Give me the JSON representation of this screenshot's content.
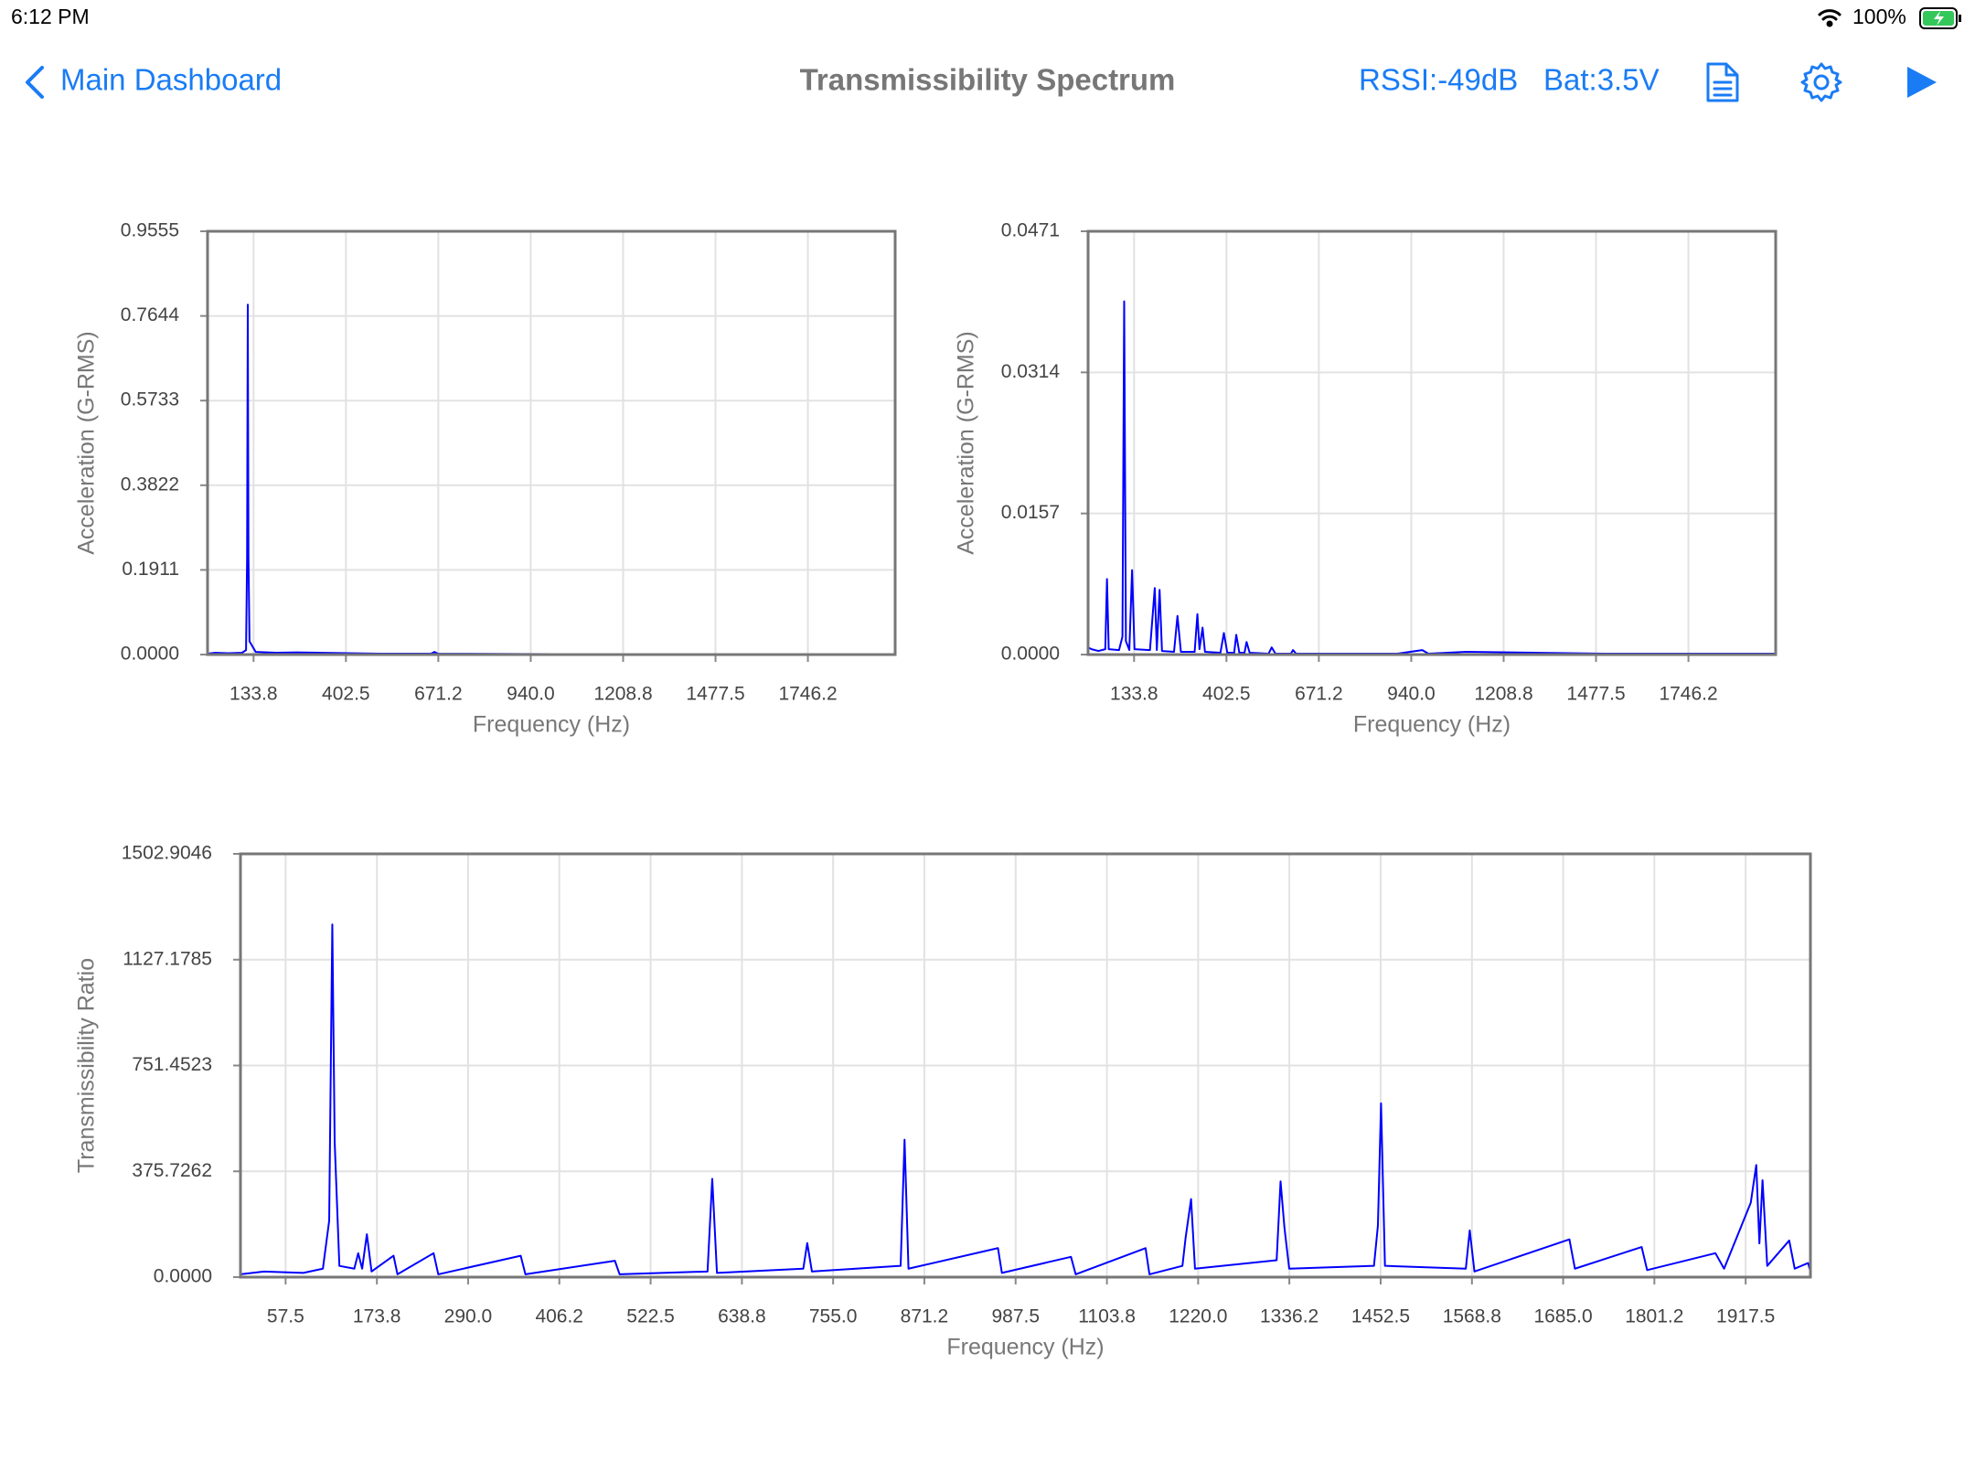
{
  "status_bar": {
    "time": "6:12 PM",
    "battery": "100%"
  },
  "nav_bar": {
    "back": "Main Dashboard",
    "title": "Transmissibility Spectrum",
    "rssi": "RSSI:-49dB",
    "battery": "Bat:3.5V"
  },
  "chart_data": [
    {
      "type": "line",
      "xlabel": "Frequency (Hz)",
      "ylabel": "Acceleration (G-RMS)",
      "color": "#0000ff",
      "grid": true,
      "xlim": [
        0,
        2000
      ],
      "ylim": [
        0,
        0.9555
      ],
      "xticks": [
        133.8,
        402.5,
        671.2,
        {
          "value": 940,
          "label": "940.0"
        },
        1208.8,
        1477.5,
        1746.2
      ],
      "yticks": [
        {
          "value": 0,
          "label": "0.0000"
        },
        0.1911,
        0.3822,
        0.5733,
        0.7644,
        0.9555
      ],
      "x": [
        0,
        20,
        60,
        100,
        112,
        115,
        117,
        119,
        122,
        140,
        200,
        260,
        500,
        650,
        660,
        670,
        1000,
        1500,
        2000
      ],
      "values": [
        0.002,
        0.004,
        0.003,
        0.004,
        0.01,
        0.22,
        0.79,
        0.22,
        0.03,
        0.006,
        0.004,
        0.005,
        0.002,
        0.002,
        0.006,
        0.002,
        0.001,
        0.001,
        0.001
      ]
    },
    {
      "type": "line",
      "xlabel": "Frequency (Hz)",
      "ylabel": "Acceleration (G-RMS)",
      "color": "#0000ff",
      "grid": true,
      "xlim": [
        0,
        2000
      ],
      "ylim": [
        0,
        0.0471
      ],
      "xticks": [
        133.8,
        402.5,
        671.2,
        {
          "value": 940,
          "label": "940.0"
        },
        1208.8,
        1477.5,
        1746.2
      ],
      "yticks": [
        {
          "value": 0,
          "label": "0.0000"
        },
        0.0157,
        0.0314,
        0.0471
      ],
      "x": [
        0,
        10,
        30,
        50,
        55,
        60,
        90,
        100,
        105,
        110,
        120,
        128,
        135,
        180,
        194,
        200,
        208,
        215,
        250,
        260,
        270,
        310,
        318,
        324,
        333,
        340,
        385,
        395,
        405,
        425,
        431,
        440,
        455,
        461,
        470,
        525,
        534,
        545,
        590,
        596,
        605,
        700,
        900,
        972,
        990,
        1100,
        1500,
        2000
      ],
      "values": [
        0.0008,
        0.0006,
        0.0004,
        0.0006,
        0.0084,
        0.0006,
        0.0005,
        0.002,
        0.0393,
        0.0015,
        0.0005,
        0.0094,
        0.0006,
        0.0005,
        0.0074,
        0.0005,
        0.0072,
        0.0004,
        0.0003,
        0.0043,
        0.0003,
        0.0003,
        0.0045,
        0.0006,
        0.003,
        0.0003,
        0.0002,
        0.0024,
        0.0002,
        0.0002,
        0.0022,
        0.0002,
        0.0002,
        0.0014,
        0.0002,
        0.0001,
        0.0008,
        0.0001,
        0.0001,
        0.0005,
        0.0001,
        0.0001,
        0.0001,
        0.0005,
        0.0001,
        0.0003,
        0.0001,
        0.0001
      ]
    },
    {
      "type": "line",
      "xlabel": "Frequency (Hz)",
      "ylabel": "Transmissibility Ratio",
      "color": "#0000ff",
      "grid": true,
      "xlim": [
        0,
        2000
      ],
      "ylim": [
        0,
        1502.9046
      ],
      "xticks": [
        57.5,
        173.8,
        {
          "value": 290,
          "label": "290.0"
        },
        406.2,
        522.5,
        638.8,
        {
          "value": 755,
          "label": "755.0"
        },
        871.2,
        987.5,
        1103.8,
        {
          "value": 1220,
          "label": "1220.0"
        },
        1336.2,
        1452.5,
        1568.8,
        {
          "value": 1685,
          "label": "1685.0"
        },
        1801.2,
        1917.5
      ],
      "yticks": [
        {
          "value": 0,
          "label": "0.0000"
        },
        375.7262,
        751.4523,
        1127.1785,
        1502.9046
      ],
      "x": [
        0,
        30,
        80,
        105,
        113,
        117,
        120,
        126,
        145,
        150,
        155,
        161,
        167,
        195,
        200,
        246,
        252,
        357,
        363,
        477,
        483,
        595,
        601,
        607,
        717,
        722,
        728,
        841,
        846,
        851,
        965,
        970,
        1058,
        1064,
        1153,
        1158,
        1200,
        1204,
        1211,
        1216,
        1320,
        1325,
        1330,
        1336,
        1444,
        1449,
        1453,
        1458,
        1561,
        1566,
        1572,
        1693,
        1700,
        1785,
        1792,
        1879,
        1890,
        1924,
        1931,
        1935,
        1939,
        1945,
        1973,
        1980,
        1997,
        2000
      ],
      "values": [
        10,
        20,
        15,
        30,
        200,
        1252,
        480,
        40,
        30,
        85,
        30,
        152,
        20,
        76,
        10,
        85,
        10,
        76,
        10,
        58,
        10,
        20,
        349,
        15,
        30,
        121,
        20,
        40,
        488,
        30,
        103,
        15,
        72,
        10,
        103,
        10,
        40,
        139,
        277,
        30,
        60,
        340,
        174,
        30,
        40,
        183,
        617,
        40,
        30,
        166,
        20,
        134,
        30,
        107,
        25,
        85,
        30,
        264,
        398,
        120,
        344,
        40,
        130,
        30,
        50,
        20
      ]
    }
  ]
}
